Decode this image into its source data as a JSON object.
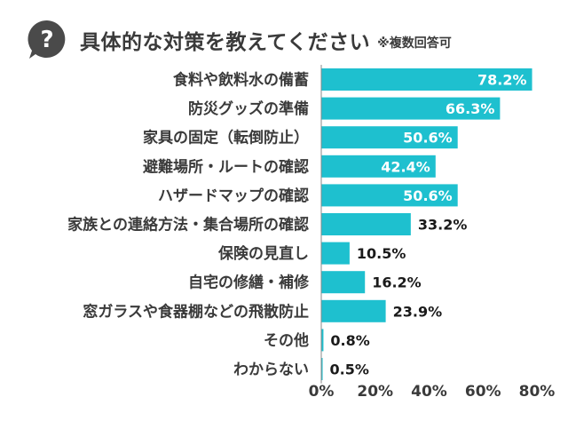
{
  "header": {
    "icon": "question-bubble-icon",
    "title": "具体的な対策を教えてください",
    "note": "※複数回答可"
  },
  "colors": {
    "bar": "#1ec0cf",
    "icon": "#4a4a4a",
    "axis": "#888888"
  },
  "chart_data": {
    "type": "bar",
    "orientation": "horizontal",
    "title": "具体的な対策を教えてください",
    "categories": [
      "食料や飲料水の備蓄",
      "防災グッズの準備",
      "家具の固定（転倒防止）",
      "避難場所・ルートの確認",
      "ハザードマップの確認",
      "家族との連絡方法・集合場所の確認",
      "保険の見直し",
      "自宅の修繕・補修",
      "窓ガラスや食器棚などの飛散防止",
      "その他",
      "わからない"
    ],
    "values": [
      78.2,
      66.3,
      50.6,
      42.4,
      50.6,
      33.2,
      10.5,
      16.2,
      23.9,
      0.8,
      0.5
    ],
    "value_labels": [
      "78.2%",
      "66.3%",
      "50.6%",
      "42.4%",
      "50.6%",
      "33.2%",
      "10.5%",
      "16.2%",
      "23.9%",
      "0.8%",
      "0.5%"
    ],
    "xlim": [
      0,
      80
    ],
    "xticks": [
      "0%",
      "20%",
      "40%",
      "60%",
      "80%"
    ],
    "xlabel": "",
    "ylabel": "",
    "grid": false,
    "legend": "none"
  }
}
